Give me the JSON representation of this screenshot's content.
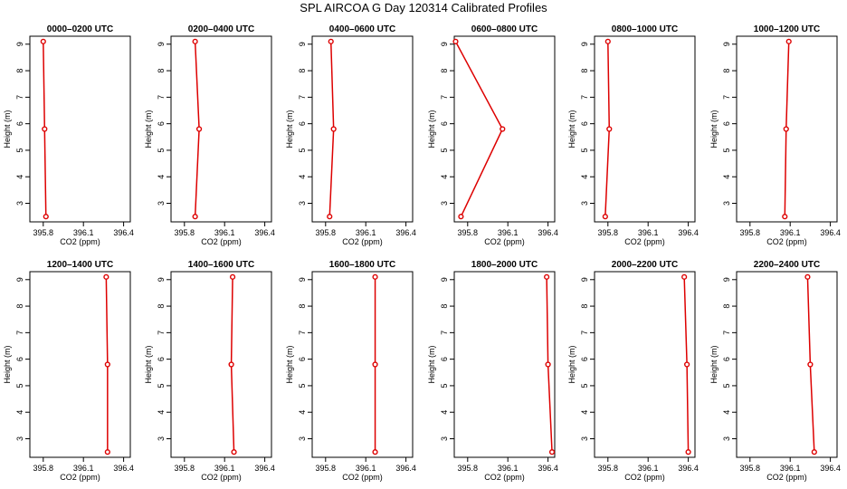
{
  "title": "SPL AIRCOA G  Day 120314  Calibrated Profiles",
  "colors": {
    "series": "#dd0000",
    "axis": "#000000"
  },
  "chart_data": [
    {
      "type": "line",
      "title": "0000–0200 UTC",
      "xlabel": "CO2 (ppm)",
      "ylabel": "Height (m)",
      "xlim": [
        395.7,
        396.45
      ],
      "ylim": [
        2.3,
        9.3
      ],
      "xticks": [
        395.8,
        396.1,
        396.4
      ],
      "xtick_labels": [
        "395.8",
        "396.1",
        "396.4"
      ],
      "yticks": [
        3,
        4,
        5,
        6,
        7,
        8,
        9
      ],
      "ytick_labels": [
        "3",
        "4",
        "5",
        "6",
        "7",
        "8",
        "9"
      ],
      "grid": false,
      "series": [
        {
          "x": [
            395.82,
            395.81,
            395.8
          ],
          "y": [
            2.5,
            5.8,
            9.1
          ]
        }
      ]
    },
    {
      "type": "line",
      "title": "0200–0400 UTC",
      "xlabel": "CO2 (ppm)",
      "ylabel": "Height (m)",
      "xlim": [
        395.7,
        396.45
      ],
      "ylim": [
        2.3,
        9.3
      ],
      "xticks": [
        395.8,
        396.1,
        396.4
      ],
      "xtick_labels": [
        "395.8",
        "396.1",
        "396.4"
      ],
      "yticks": [
        3,
        4,
        5,
        6,
        7,
        8,
        9
      ],
      "ytick_labels": [
        "3",
        "4",
        "5",
        "6",
        "7",
        "8",
        "9"
      ],
      "grid": false,
      "series": [
        {
          "x": [
            395.88,
            395.91,
            395.88
          ],
          "y": [
            2.5,
            5.8,
            9.1
          ]
        }
      ]
    },
    {
      "type": "line",
      "title": "0400–0600 UTC",
      "xlabel": "CO2 (ppm)",
      "ylabel": "Height (m)",
      "xlim": [
        395.7,
        396.45
      ],
      "ylim": [
        2.3,
        9.3
      ],
      "xticks": [
        395.8,
        396.1,
        396.4
      ],
      "xtick_labels": [
        "395.8",
        "396.1",
        "396.4"
      ],
      "yticks": [
        3,
        4,
        5,
        6,
        7,
        8,
        9
      ],
      "ytick_labels": [
        "3",
        "4",
        "5",
        "6",
        "7",
        "8",
        "9"
      ],
      "grid": false,
      "series": [
        {
          "x": [
            395.83,
            395.86,
            395.84
          ],
          "y": [
            2.5,
            5.8,
            9.1
          ]
        }
      ]
    },
    {
      "type": "line",
      "title": "0600–0800 UTC",
      "xlabel": "CO2 (ppm)",
      "ylabel": "Height (m)",
      "xlim": [
        395.7,
        396.45
      ],
      "ylim": [
        2.3,
        9.3
      ],
      "xticks": [
        395.8,
        396.1,
        396.4
      ],
      "xtick_labels": [
        "395.8",
        "396.1",
        "396.4"
      ],
      "yticks": [
        3,
        4,
        5,
        6,
        7,
        8,
        9
      ],
      "ytick_labels": [
        "3",
        "4",
        "5",
        "6",
        "7",
        "8",
        "9"
      ],
      "grid": false,
      "series": [
        {
          "x": [
            395.75,
            396.06,
            395.71
          ],
          "y": [
            2.5,
            5.8,
            9.1
          ]
        }
      ]
    },
    {
      "type": "line",
      "title": "0800–1000 UTC",
      "xlabel": "CO2 (ppm)",
      "ylabel": "Height (m)",
      "xlim": [
        395.7,
        396.45
      ],
      "ylim": [
        2.3,
        9.3
      ],
      "xticks": [
        395.8,
        396.1,
        396.4
      ],
      "xtick_labels": [
        "395.8",
        "396.1",
        "396.4"
      ],
      "yticks": [
        3,
        4,
        5,
        6,
        7,
        8,
        9
      ],
      "ytick_labels": [
        "3",
        "4",
        "5",
        "6",
        "7",
        "8",
        "9"
      ],
      "grid": false,
      "series": [
        {
          "x": [
            395.78,
            395.81,
            395.8
          ],
          "y": [
            2.5,
            5.8,
            9.1
          ]
        }
      ]
    },
    {
      "type": "line",
      "title": "1000–1200 UTC",
      "xlabel": "CO2 (ppm)",
      "ylabel": "Height (m)",
      "xlim": [
        395.7,
        396.45
      ],
      "ylim": [
        2.3,
        9.3
      ],
      "xticks": [
        395.8,
        396.1,
        396.4
      ],
      "xtick_labels": [
        "395.8",
        "396.1",
        "396.4"
      ],
      "yticks": [
        3,
        4,
        5,
        6,
        7,
        8,
        9
      ],
      "ytick_labels": [
        "3",
        "4",
        "5",
        "6",
        "7",
        "8",
        "9"
      ],
      "grid": false,
      "series": [
        {
          "x": [
            396.06,
            396.07,
            396.09
          ],
          "y": [
            2.5,
            5.8,
            9.1
          ]
        }
      ]
    },
    {
      "type": "line",
      "title": "1200–1400 UTC",
      "xlabel": "CO2 (ppm)",
      "ylabel": "Height (m)",
      "xlim": [
        395.7,
        396.45
      ],
      "ylim": [
        2.3,
        9.3
      ],
      "xticks": [
        395.8,
        396.1,
        396.4
      ],
      "xtick_labels": [
        "395.8",
        "396.1",
        "396.4"
      ],
      "yticks": [
        3,
        4,
        5,
        6,
        7,
        8,
        9
      ],
      "ytick_labels": [
        "3",
        "4",
        "5",
        "6",
        "7",
        "8",
        "9"
      ],
      "grid": false,
      "series": [
        {
          "x": [
            396.28,
            396.28,
            396.27
          ],
          "y": [
            2.5,
            5.8,
            9.1
          ]
        }
      ]
    },
    {
      "type": "line",
      "title": "1400–1600 UTC",
      "xlabel": "CO2 (ppm)",
      "ylabel": "Height (m)",
      "xlim": [
        395.7,
        396.45
      ],
      "ylim": [
        2.3,
        9.3
      ],
      "xticks": [
        395.8,
        396.1,
        396.4
      ],
      "xtick_labels": [
        "395.8",
        "396.1",
        "396.4"
      ],
      "yticks": [
        3,
        4,
        5,
        6,
        7,
        8,
        9
      ],
      "ytick_labels": [
        "3",
        "4",
        "5",
        "6",
        "7",
        "8",
        "9"
      ],
      "grid": false,
      "series": [
        {
          "x": [
            396.17,
            396.15,
            396.16
          ],
          "y": [
            2.5,
            5.8,
            9.1
          ]
        }
      ]
    },
    {
      "type": "line",
      "title": "1600–1800 UTC",
      "xlabel": "CO2 (ppm)",
      "ylabel": "Height (m)",
      "xlim": [
        395.7,
        396.45
      ],
      "ylim": [
        2.3,
        9.3
      ],
      "xticks": [
        395.8,
        396.1,
        396.4
      ],
      "xtick_labels": [
        "395.8",
        "396.1",
        "396.4"
      ],
      "yticks": [
        3,
        4,
        5,
        6,
        7,
        8,
        9
      ],
      "ytick_labels": [
        "3",
        "4",
        "5",
        "6",
        "7",
        "8",
        "9"
      ],
      "grid": false,
      "series": [
        {
          "x": [
            396.17,
            396.17,
            396.17
          ],
          "y": [
            2.5,
            5.8,
            9.1
          ]
        }
      ]
    },
    {
      "type": "line",
      "title": "1800–2000 UTC",
      "xlabel": "CO2 (ppm)",
      "ylabel": "Height (m)",
      "xlim": [
        395.7,
        396.45
      ],
      "ylim": [
        2.3,
        9.3
      ],
      "xticks": [
        395.8,
        396.1,
        396.4
      ],
      "xtick_labels": [
        "395.8",
        "396.1",
        "396.4"
      ],
      "yticks": [
        3,
        4,
        5,
        6,
        7,
        8,
        9
      ],
      "ytick_labels": [
        "3",
        "4",
        "5",
        "6",
        "7",
        "8",
        "9"
      ],
      "grid": false,
      "series": [
        {
          "x": [
            396.43,
            396.4,
            396.39
          ],
          "y": [
            2.5,
            5.8,
            9.1
          ]
        }
      ]
    },
    {
      "type": "line",
      "title": "2000–2200 UTC",
      "xlabel": "CO2 (ppm)",
      "ylabel": "Height (m)",
      "xlim": [
        395.7,
        396.45
      ],
      "ylim": [
        2.3,
        9.3
      ],
      "xticks": [
        395.8,
        396.1,
        396.4
      ],
      "xtick_labels": [
        "395.8",
        "396.1",
        "396.4"
      ],
      "yticks": [
        3,
        4,
        5,
        6,
        7,
        8,
        9
      ],
      "ytick_labels": [
        "3",
        "4",
        "5",
        "6",
        "7",
        "8",
        "9"
      ],
      "grid": false,
      "series": [
        {
          "x": [
            396.4,
            396.39,
            396.37
          ],
          "y": [
            2.5,
            5.8,
            9.1
          ]
        }
      ]
    },
    {
      "type": "line",
      "title": "2200–2400 UTC",
      "xlabel": "CO2 (ppm)",
      "ylabel": "Height (m)",
      "xlim": [
        395.7,
        396.45
      ],
      "ylim": [
        2.3,
        9.3
      ],
      "xticks": [
        395.8,
        396.1,
        396.4
      ],
      "xtick_labels": [
        "395.8",
        "396.1",
        "396.4"
      ],
      "yticks": [
        3,
        4,
        5,
        6,
        7,
        8,
        9
      ],
      "ytick_labels": [
        "3",
        "4",
        "5",
        "6",
        "7",
        "8",
        "9"
      ],
      "grid": false,
      "series": [
        {
          "x": [
            396.28,
            396.25,
            396.23
          ],
          "y": [
            2.5,
            5.8,
            9.1
          ]
        }
      ]
    }
  ]
}
